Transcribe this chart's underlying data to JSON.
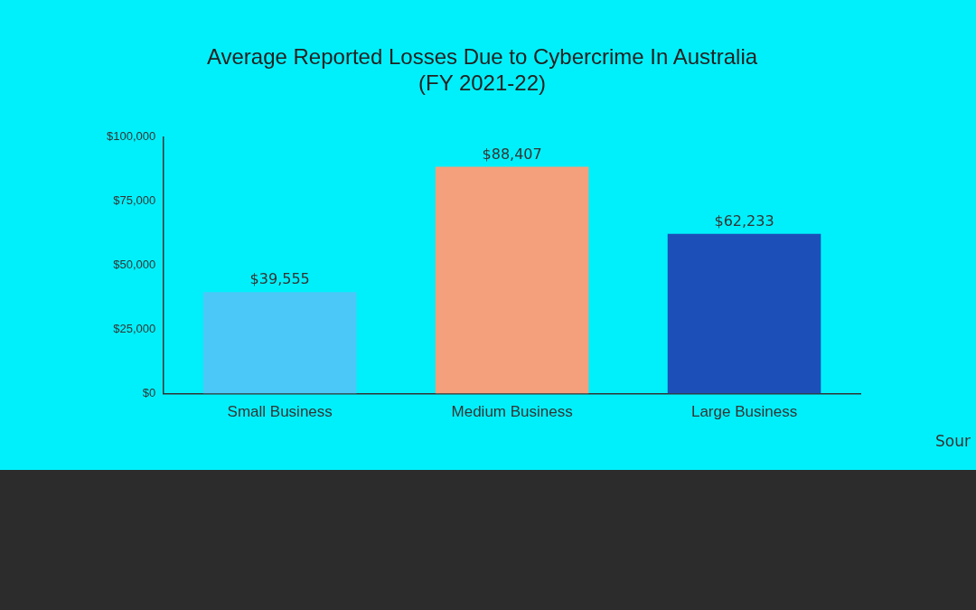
{
  "chart_data": {
    "type": "bar",
    "title": [
      "Average Reported Losses Due to Cybercrime In Australia",
      "(FY 2021-22)"
    ],
    "categories": [
      "Small Business",
      "Medium Business",
      "Large Business"
    ],
    "values": [
      39555,
      88407,
      62233
    ],
    "colors": [
      "#4bc8f7",
      "#f4a07c",
      "#1c50b8"
    ],
    "value_labels": [
      "$39,555",
      "$88,407",
      "$62,233"
    ],
    "ylim": [
      0,
      100000
    ],
    "yticks": [
      {
        "value": 0,
        "label": "$0"
      },
      {
        "value": 25000,
        "label": "$25,000"
      },
      {
        "value": 50000,
        "label": "$50,000"
      },
      {
        "value": 75000,
        "label": "$75,000"
      },
      {
        "value": 100000,
        "label": "$100,000"
      }
    ],
    "grid": false,
    "legend": false,
    "annotations": [
      "Sour"
    ]
  }
}
